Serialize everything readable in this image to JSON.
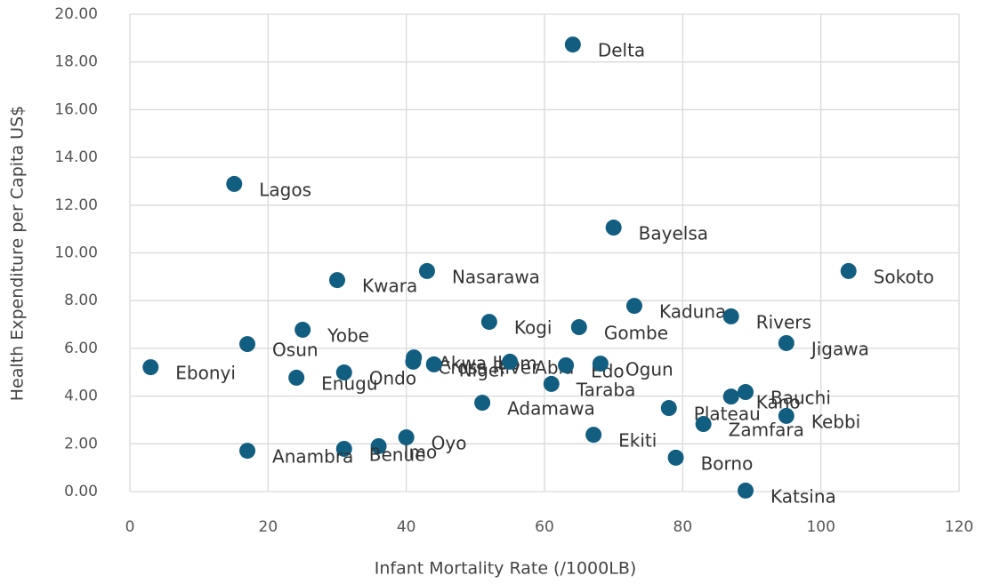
{
  "chart_data": {
    "type": "scatter",
    "x_label": "Infant Mortality Rate (/1000LB)",
    "y_label": "Health Expenditure per Capita US$",
    "labels": [
      "Delta",
      "Lagos",
      "Bayelsa",
      "Sokoto",
      "Nasarawa",
      "Kwara",
      "Kaduna",
      "Rivers",
      "Kogi",
      "Gombe",
      "Yobe",
      "Osun",
      "Jigawa",
      "Ebonyi",
      "Akwa Ibom",
      "Cross River",
      "Niger",
      "Abia",
      "Edo",
      "Ogun",
      "Enugu",
      "Ondo",
      "Taraba",
      "Adamawa",
      "Bauchi",
      "Kano",
      "Plateau",
      "Kebbi",
      "Zamfara",
      "Oyo",
      "Imo",
      "Benue",
      "Anambra",
      "Ekiti",
      "Borno",
      "Katsina"
    ],
    "x": [
      64.1,
      15.1,
      70.0,
      104.0,
      43.0,
      30.0,
      73.0,
      87.0,
      52.0,
      65.0,
      25.0,
      17.0,
      95.0,
      3.0,
      41.1,
      41.0,
      44.0,
      55.0,
      63.1,
      68.1,
      24.1,
      31.0,
      61.0,
      51.0,
      89.1,
      87.0,
      78.0,
      95.0,
      83.0,
      40.0,
      36.0,
      31.0,
      17.0,
      67.1,
      79.0,
      89.1
    ],
    "values": [
      18.73,
      12.89,
      11.06,
      9.24,
      9.24,
      8.86,
      7.78,
      7.34,
      7.11,
      6.89,
      6.78,
      6.18,
      6.22,
      5.21,
      5.62,
      5.44,
      5.33,
      5.44,
      5.29,
      5.36,
      4.77,
      4.99,
      4.51,
      3.72,
      4.17,
      3.98,
      3.5,
      3.17,
      2.83,
      2.27,
      1.9,
      1.79,
      1.71,
      2.38,
      1.42,
      0.04
    ],
    "color": "#125e80",
    "xlim": [
      0,
      120
    ],
    "xticks": [
      0,
      20,
      40,
      60,
      80,
      100,
      120
    ],
    "ylim": [
      0,
      20
    ],
    "yticks": [
      {
        "value": 0,
        "label": "0.00"
      },
      {
        "value": 2,
        "label": "2.00"
      },
      {
        "value": 4,
        "label": "4.00"
      },
      {
        "value": 6,
        "label": "6.00"
      },
      {
        "value": 8,
        "label": "8.00"
      },
      {
        "value": 10,
        "label": "10.00"
      },
      {
        "value": 12,
        "label": "12.00"
      },
      {
        "value": 14,
        "label": "14.00"
      },
      {
        "value": 16,
        "label": "16.00"
      },
      {
        "value": 18,
        "label": "18.00"
      },
      {
        "value": 20,
        "label": "20.00"
      }
    ],
    "grid": true
  }
}
